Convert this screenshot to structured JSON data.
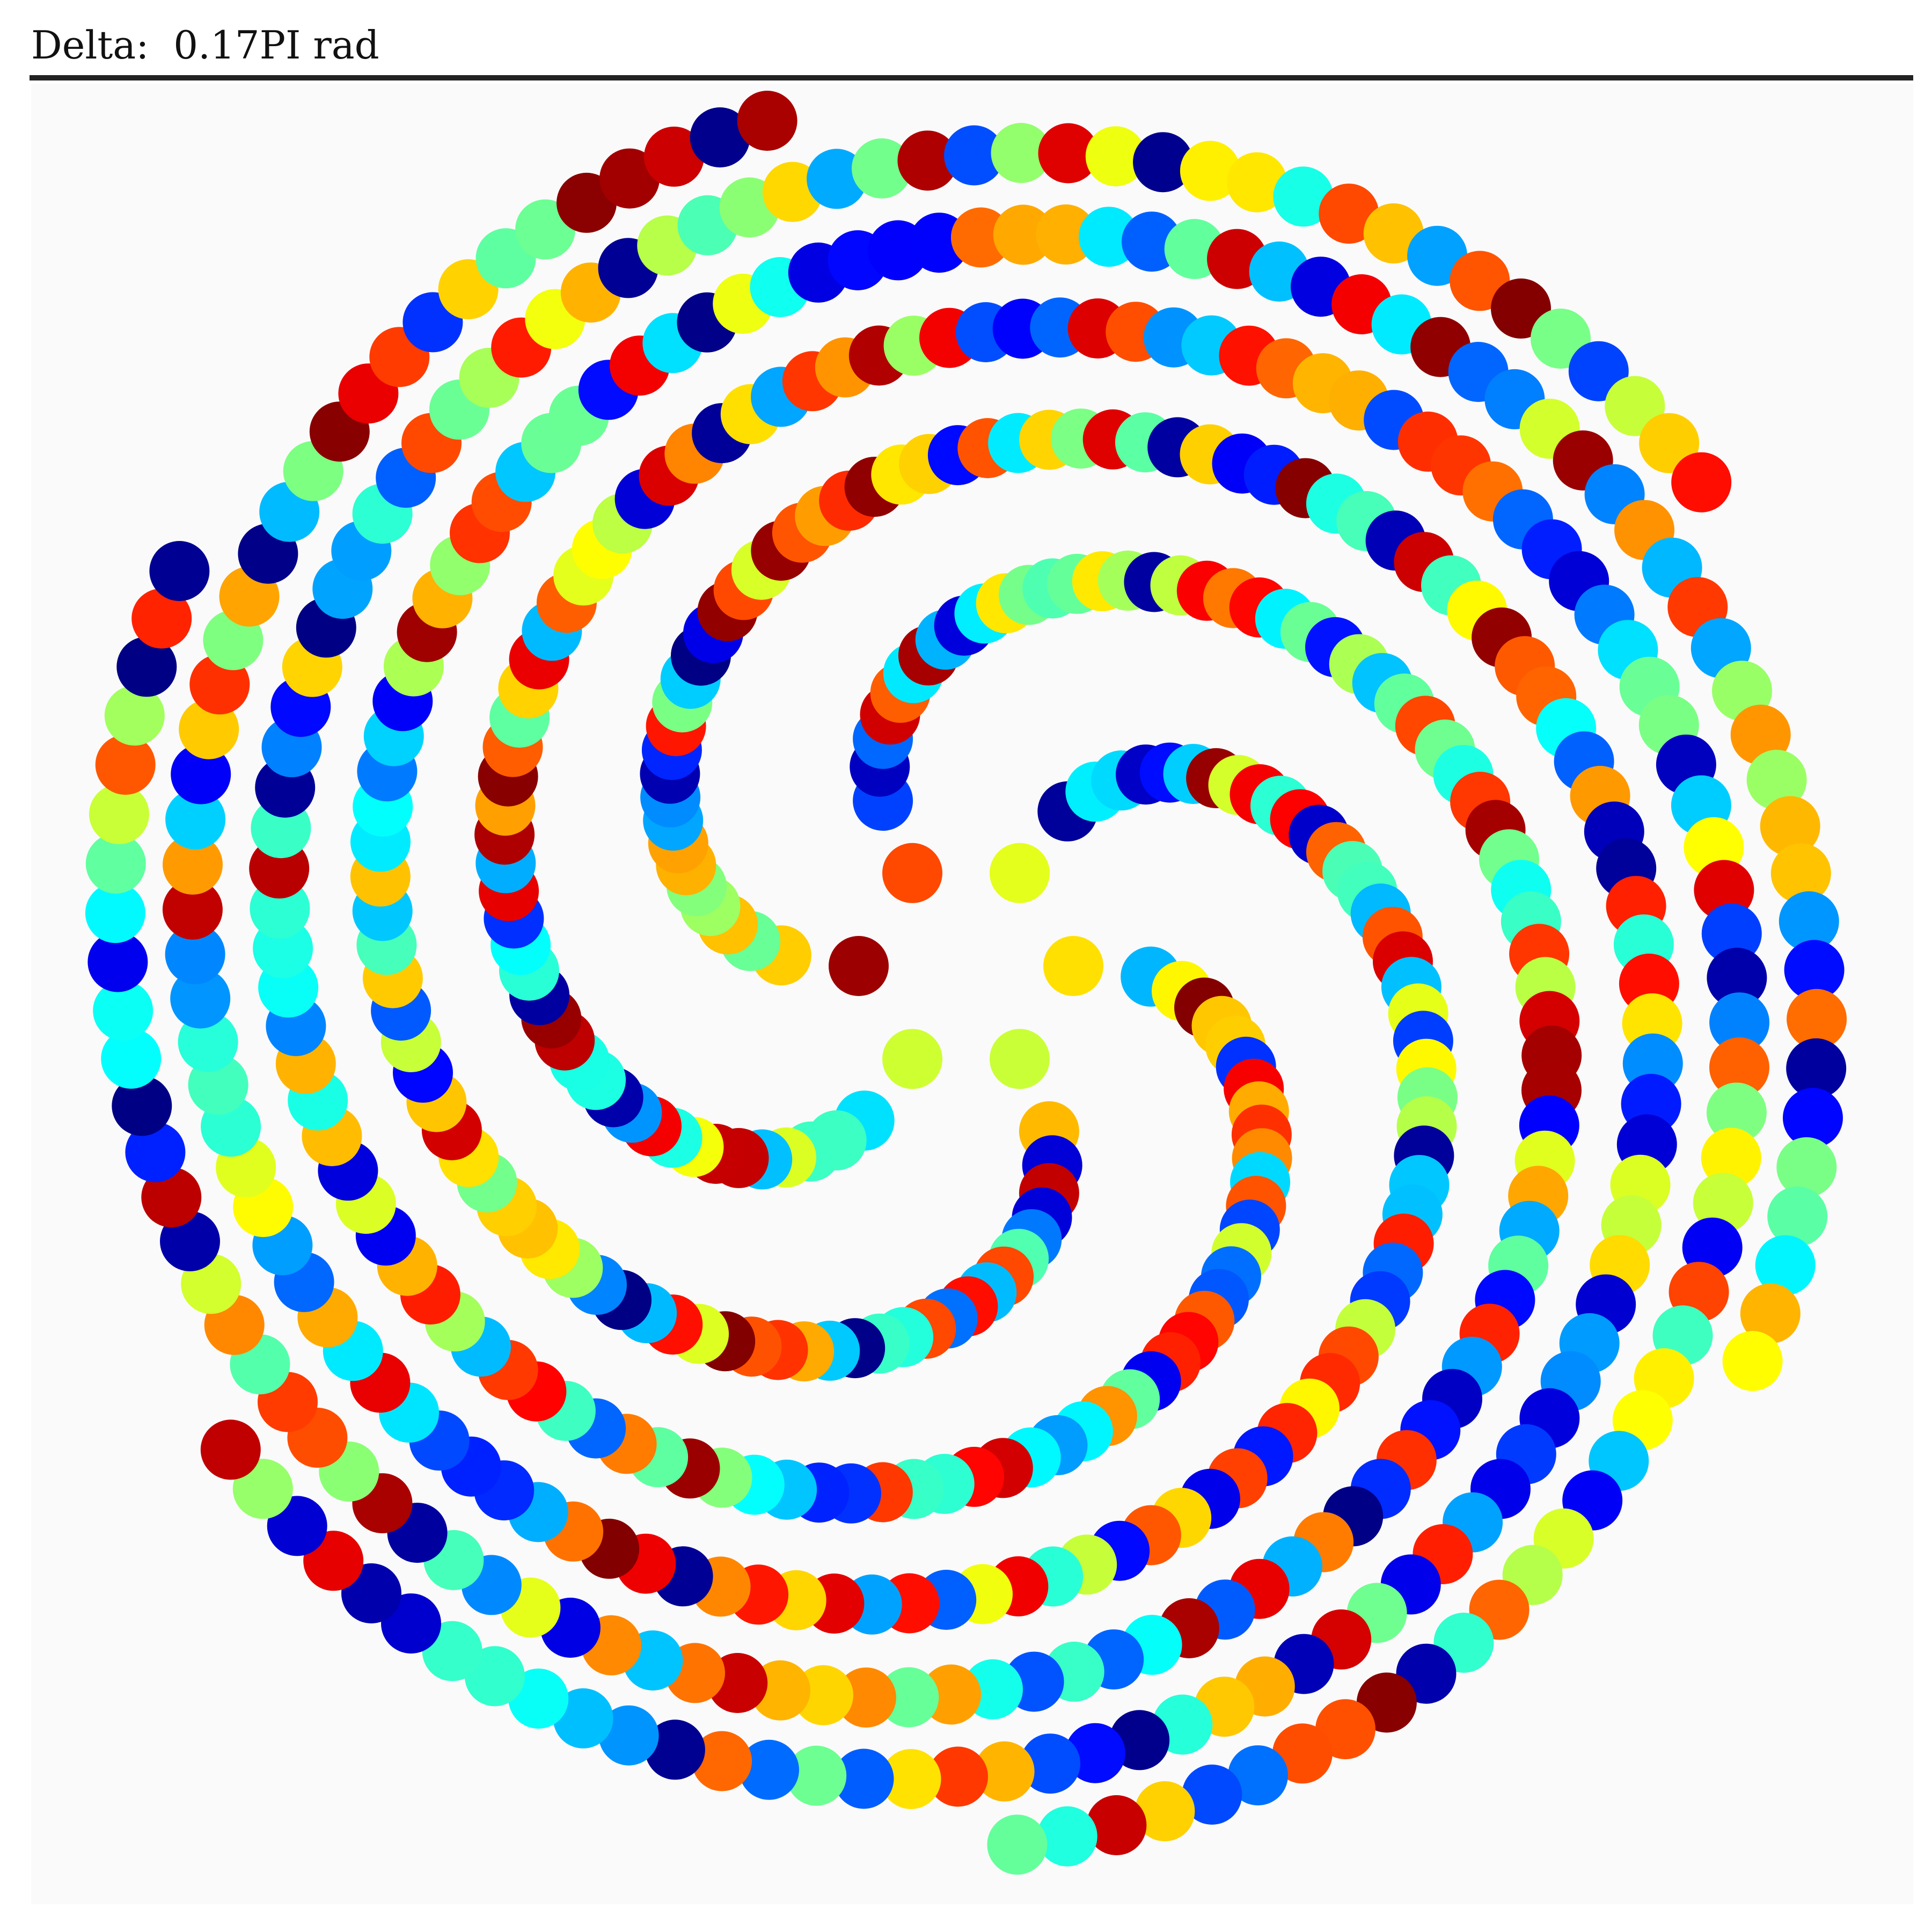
{
  "caption": "Delta:  0.17PI rad",
  "pattern": {
    "arms": 6,
    "points_per_arm": 100,
    "palette": "jet",
    "delta_rad_over_pi": 0.17
  }
}
